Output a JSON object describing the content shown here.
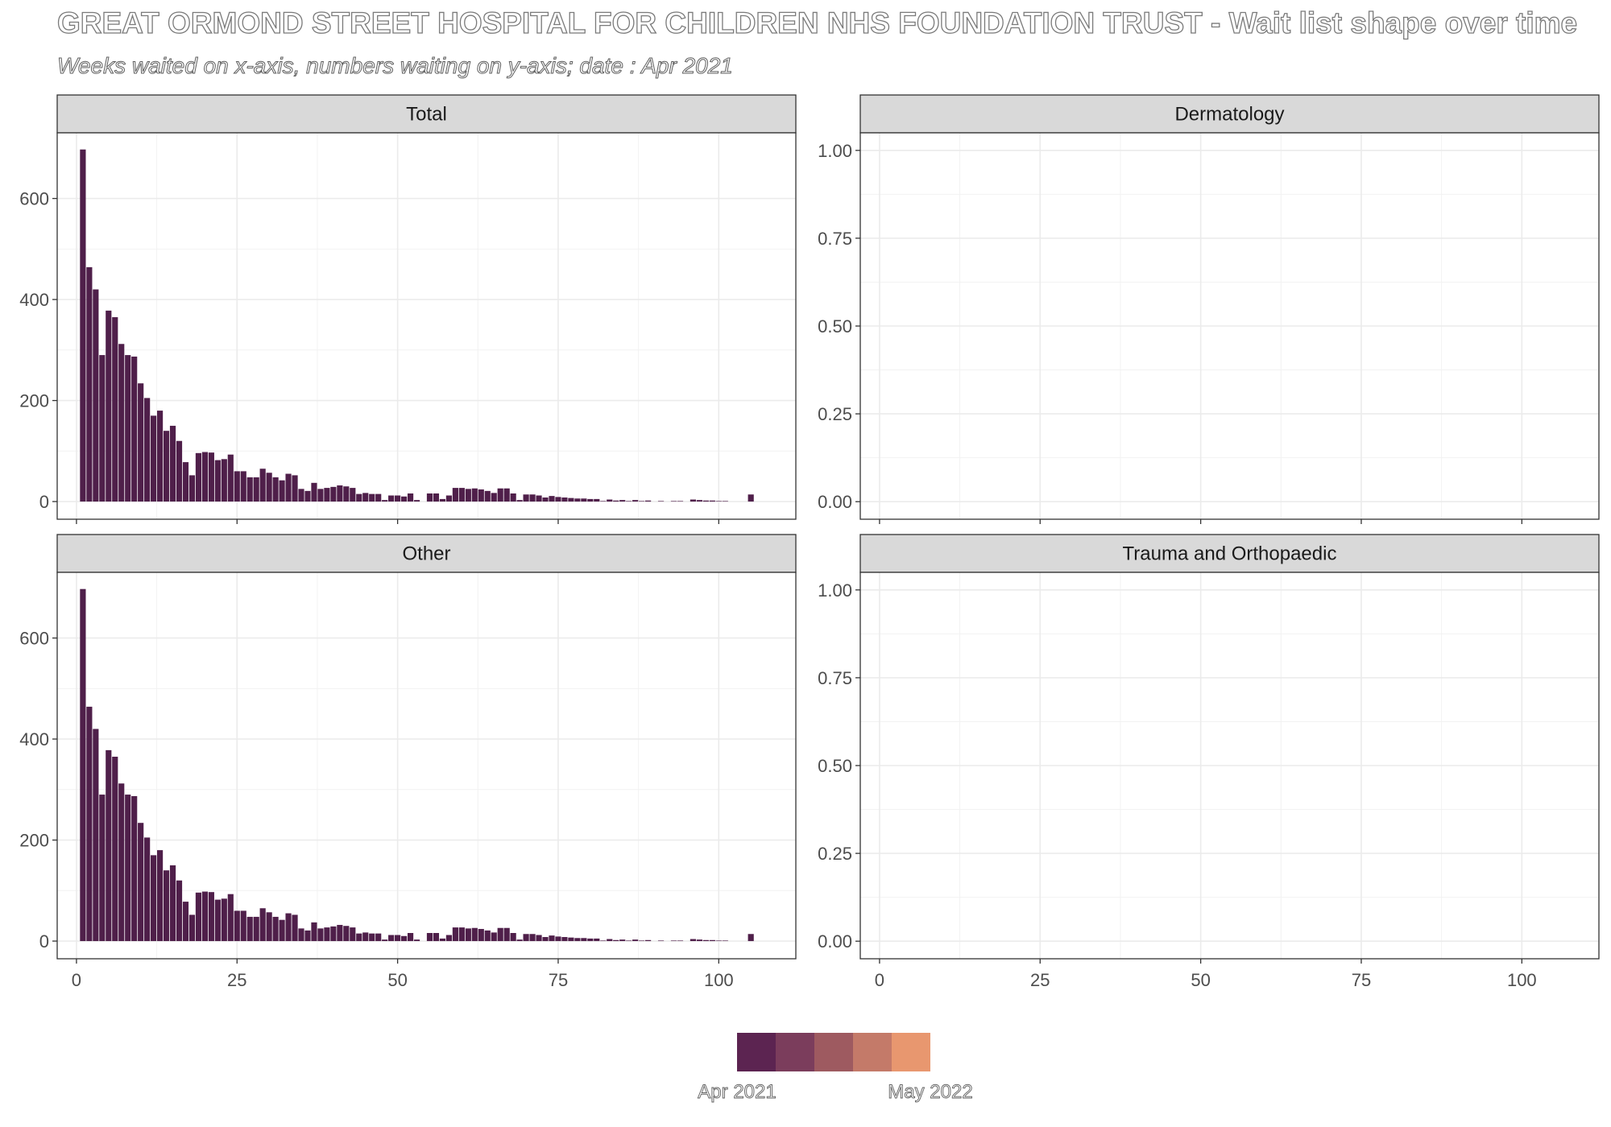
{
  "title": "GREAT ORMOND STREET HOSPITAL FOR CHILDREN NHS FOUNDATION TRUST - Wait list shape over time",
  "subtitle": "Weeks waited on x-axis, numbers waiting on y-axis; date : Apr 2021",
  "legend": {
    "start_label": "Apr 2021",
    "end_label": "May 2022",
    "colors": [
      "#5c2451",
      "#7b3d5c",
      "#9e5a60",
      "#c47a69",
      "#e8976f"
    ]
  },
  "colors": {
    "bar": "#4f1f4a",
    "strip_bg": "#d9d9d9",
    "grid": "#ebebeb",
    "panel_border": "#333333"
  },
  "chart_data": [
    {
      "type": "bar",
      "panel": "Total",
      "xlim": [
        -3,
        112
      ],
      "ylim": [
        -35,
        730
      ],
      "x_ticks": [
        0,
        25,
        50,
        75,
        100
      ],
      "y_ticks": [
        0,
        200,
        400,
        600
      ],
      "y_tick_labels": [
        "0",
        "200",
        "400",
        "600"
      ],
      "x_tick_labels_visible": false,
      "grid": true,
      "x": [
        1,
        2,
        3,
        4,
        5,
        6,
        7,
        8,
        9,
        10,
        11,
        12,
        13,
        14,
        15,
        16,
        17,
        18,
        19,
        20,
        21,
        22,
        23,
        24,
        25,
        26,
        27,
        28,
        29,
        30,
        31,
        32,
        33,
        34,
        35,
        36,
        37,
        38,
        39,
        40,
        41,
        42,
        43,
        44,
        45,
        46,
        47,
        48,
        49,
        50,
        51,
        52,
        53,
        54,
        55,
        56,
        57,
        58,
        59,
        60,
        61,
        62,
        63,
        64,
        65,
        66,
        67,
        68,
        69,
        70,
        71,
        72,
        73,
        74,
        75,
        76,
        77,
        78,
        79,
        80,
        81,
        82,
        83,
        84,
        85,
        86,
        87,
        88,
        89,
        90,
        91,
        92,
        93,
        94,
        95,
        96,
        97,
        98,
        99,
        100,
        101,
        102,
        103,
        104,
        105
      ],
      "values": [
        697,
        464,
        420,
        290,
        378,
        365,
        312,
        290,
        287,
        234,
        205,
        170,
        180,
        140,
        150,
        120,
        78,
        52,
        96,
        98,
        97,
        82,
        84,
        93,
        60,
        60,
        48,
        48,
        65,
        57,
        48,
        42,
        55,
        52,
        25,
        21,
        37,
        25,
        27,
        29,
        32,
        30,
        27,
        15,
        17,
        15,
        15,
        3,
        12,
        12,
        10,
        16,
        3,
        0,
        16,
        16,
        5,
        12,
        27,
        27,
        25,
        26,
        24,
        21,
        17,
        26,
        26,
        16,
        3,
        14,
        14,
        12,
        8,
        11,
        9,
        8,
        7,
        6,
        6,
        5,
        5,
        1,
        4,
        2,
        3,
        1,
        3,
        1,
        2,
        0,
        1,
        0,
        1,
        1,
        0,
        4,
        3,
        2,
        2,
        1,
        1,
        0,
        0,
        0,
        14
      ]
    },
    {
      "type": "bar",
      "panel": "Dermatology",
      "xlim": [
        -3,
        112
      ],
      "ylim": [
        -0.05,
        1.05
      ],
      "x_ticks": [
        0,
        25,
        50,
        75,
        100
      ],
      "y_ticks": [
        0,
        0.25,
        0.5,
        0.75,
        1
      ],
      "y_tick_labels": [
        "0.00",
        "0.25",
        "0.50",
        "0.75",
        "1.00"
      ],
      "x_tick_labels_visible": false,
      "grid": true,
      "x": [],
      "values": []
    },
    {
      "type": "bar",
      "panel": "Other",
      "xlim": [
        -3,
        112
      ],
      "ylim": [
        -35,
        730
      ],
      "x_ticks": [
        0,
        25,
        50,
        75,
        100
      ],
      "y_ticks": [
        0,
        200,
        400,
        600
      ],
      "y_tick_labels": [
        "0",
        "200",
        "400",
        "600"
      ],
      "x_tick_labels": [
        "0",
        "25",
        "50",
        "75",
        "100"
      ],
      "x_tick_labels_visible": true,
      "grid": true,
      "x": [
        1,
        2,
        3,
        4,
        5,
        6,
        7,
        8,
        9,
        10,
        11,
        12,
        13,
        14,
        15,
        16,
        17,
        18,
        19,
        20,
        21,
        22,
        23,
        24,
        25,
        26,
        27,
        28,
        29,
        30,
        31,
        32,
        33,
        34,
        35,
        36,
        37,
        38,
        39,
        40,
        41,
        42,
        43,
        44,
        45,
        46,
        47,
        48,
        49,
        50,
        51,
        52,
        53,
        54,
        55,
        56,
        57,
        58,
        59,
        60,
        61,
        62,
        63,
        64,
        65,
        66,
        67,
        68,
        69,
        70,
        71,
        72,
        73,
        74,
        75,
        76,
        77,
        78,
        79,
        80,
        81,
        82,
        83,
        84,
        85,
        86,
        87,
        88,
        89,
        90,
        91,
        92,
        93,
        94,
        95,
        96,
        97,
        98,
        99,
        100,
        101,
        102,
        103,
        104,
        105
      ],
      "values": [
        697,
        464,
        420,
        290,
        378,
        365,
        312,
        290,
        287,
        234,
        205,
        170,
        180,
        140,
        150,
        120,
        78,
        52,
        96,
        98,
        97,
        82,
        84,
        93,
        60,
        60,
        48,
        48,
        65,
        57,
        48,
        42,
        55,
        52,
        25,
        21,
        37,
        25,
        27,
        29,
        32,
        30,
        27,
        15,
        17,
        15,
        15,
        3,
        12,
        12,
        10,
        16,
        3,
        0,
        16,
        16,
        5,
        12,
        27,
        27,
        25,
        26,
        24,
        21,
        17,
        26,
        26,
        16,
        3,
        14,
        14,
        12,
        8,
        11,
        9,
        8,
        7,
        6,
        6,
        5,
        5,
        1,
        4,
        2,
        3,
        1,
        3,
        1,
        2,
        0,
        1,
        0,
        1,
        1,
        0,
        4,
        3,
        2,
        2,
        1,
        1,
        0,
        0,
        0,
        14
      ]
    },
    {
      "type": "bar",
      "panel": "Trauma and Orthopaedic",
      "xlim": [
        -3,
        112
      ],
      "ylim": [
        -0.05,
        1.05
      ],
      "x_ticks": [
        0,
        25,
        50,
        75,
        100
      ],
      "y_ticks": [
        0,
        0.25,
        0.5,
        0.75,
        1
      ],
      "y_tick_labels": [
        "0.00",
        "0.25",
        "0.50",
        "0.75",
        "1.00"
      ],
      "x_tick_labels": [
        "0",
        "25",
        "50",
        "75",
        "100"
      ],
      "x_tick_labels_visible": true,
      "grid": true,
      "x": [],
      "values": []
    }
  ]
}
